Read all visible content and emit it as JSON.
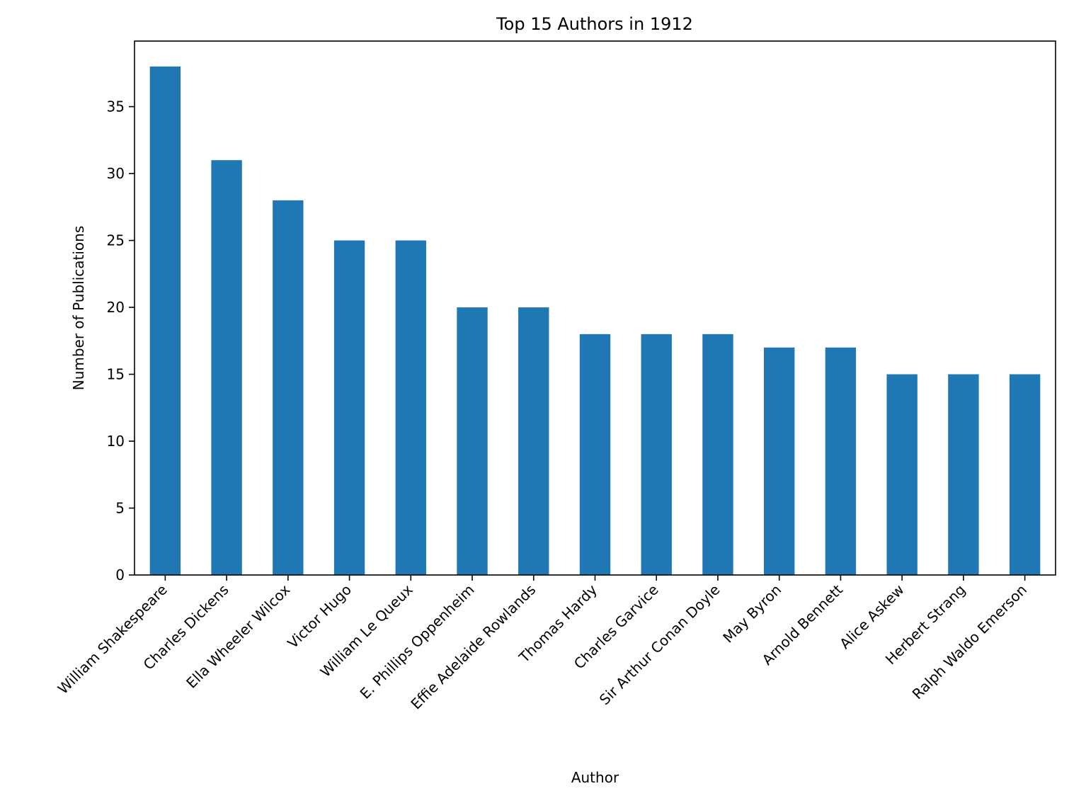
{
  "chart_data": {
    "type": "bar",
    "title": "Top 15 Authors in 1912",
    "xlabel": "Author",
    "ylabel": "Number of Publications",
    "categories": [
      "William Shakespeare",
      "Charles Dickens",
      "Ella Wheeler Wilcox",
      "Victor Hugo",
      "William Le Queux",
      "E. Phillips Oppenheim",
      "Effie Adelaide Rowlands",
      "Thomas Hardy",
      "Charles Garvice",
      "Sir Arthur Conan Doyle",
      "May Byron",
      "Arnold Bennett",
      "Alice Askew",
      "Herbert Strang",
      "Ralph Waldo Emerson"
    ],
    "values": [
      38,
      31,
      28,
      25,
      25,
      20,
      20,
      18,
      18,
      18,
      17,
      17,
      15,
      15,
      15
    ],
    "ylim": [
      0,
      39.9
    ],
    "yticks": [
      0,
      5,
      10,
      15,
      20,
      25,
      30,
      35
    ],
    "bar_color": "#1f77b4",
    "grid": false,
    "legend": "none"
  }
}
